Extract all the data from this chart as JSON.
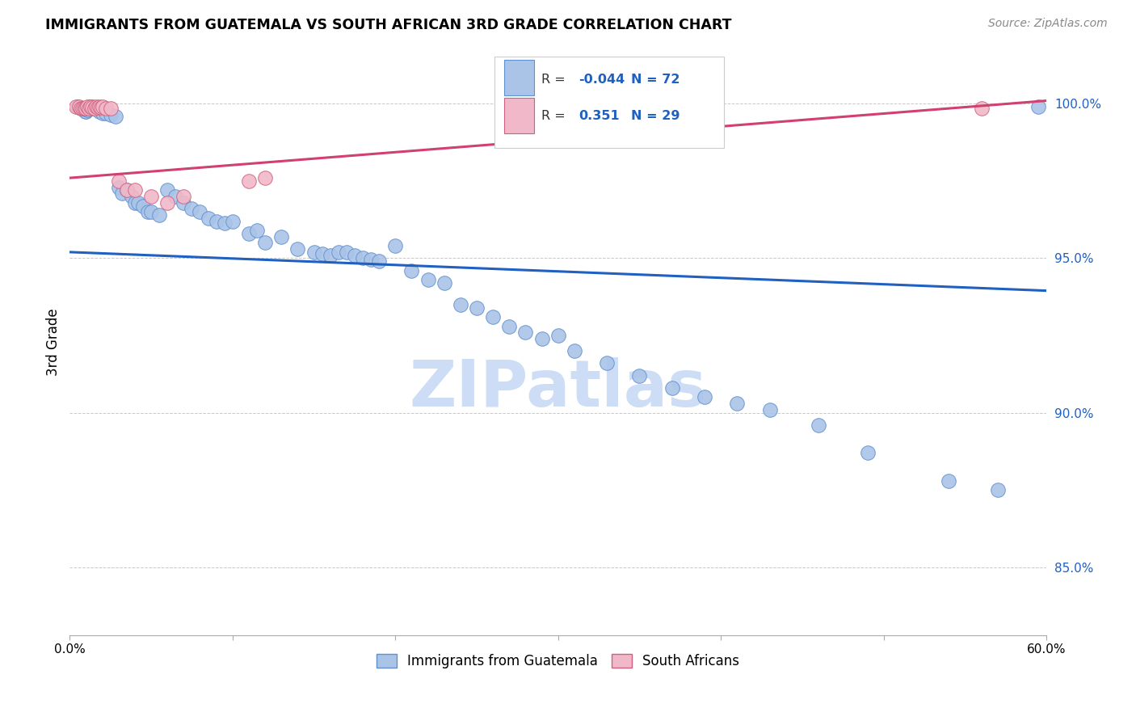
{
  "title": "IMMIGRANTS FROM GUATEMALA VS SOUTH AFRICAN 3RD GRADE CORRELATION CHART",
  "source": "Source: ZipAtlas.com",
  "ylabel": "3rd Grade",
  "y_ticks": [
    0.85,
    0.9,
    0.95,
    1.0
  ],
  "y_tick_labels": [
    "85.0%",
    "90.0%",
    "95.0%",
    "100.0%"
  ],
  "xmin": 0.0,
  "xmax": 0.6,
  "ymin": 0.828,
  "ymax": 1.018,
  "legend_label1": "Immigrants from Guatemala",
  "legend_label2": "South Africans",
  "r1": -0.044,
  "n1": 72,
  "r2": 0.351,
  "n2": 29,
  "color_blue": "#aac4e8",
  "color_pink": "#f0b8c8",
  "color_blue_edge": "#6090d0",
  "color_pink_edge": "#d06080",
  "trendline_blue": "#2060c0",
  "trendline_pink": "#d04070",
  "watermark_color": "#ccddf5",
  "blue_trendline_y0": 0.952,
  "blue_trendline_y1": 0.9395,
  "pink_trendline_y0": 0.976,
  "pink_trendline_y1": 1.001,
  "blue_scatter_x": [
    0.005,
    0.007,
    0.008,
    0.01,
    0.01,
    0.011,
    0.012,
    0.013,
    0.014,
    0.015,
    0.016,
    0.018,
    0.02,
    0.022,
    0.025,
    0.028,
    0.03,
    0.032,
    0.035,
    0.038,
    0.04,
    0.042,
    0.045,
    0.048,
    0.05,
    0.055,
    0.06,
    0.065,
    0.07,
    0.075,
    0.08,
    0.085,
    0.09,
    0.095,
    0.1,
    0.11,
    0.115,
    0.12,
    0.13,
    0.14,
    0.15,
    0.155,
    0.16,
    0.165,
    0.17,
    0.175,
    0.18,
    0.185,
    0.19,
    0.2,
    0.21,
    0.22,
    0.23,
    0.24,
    0.25,
    0.26,
    0.27,
    0.28,
    0.29,
    0.3,
    0.31,
    0.33,
    0.35,
    0.37,
    0.39,
    0.41,
    0.43,
    0.46,
    0.49,
    0.54,
    0.57,
    0.595
  ],
  "blue_scatter_y": [
    0.999,
    0.9985,
    0.9985,
    0.9975,
    0.9975,
    0.998,
    0.999,
    0.9985,
    0.999,
    0.9985,
    0.9985,
    0.9975,
    0.997,
    0.997,
    0.9965,
    0.996,
    0.973,
    0.971,
    0.972,
    0.97,
    0.968,
    0.968,
    0.967,
    0.965,
    0.965,
    0.964,
    0.972,
    0.97,
    0.968,
    0.966,
    0.965,
    0.963,
    0.962,
    0.9615,
    0.962,
    0.958,
    0.959,
    0.955,
    0.957,
    0.953,
    0.952,
    0.9515,
    0.951,
    0.952,
    0.952,
    0.951,
    0.95,
    0.9495,
    0.949,
    0.954,
    0.946,
    0.943,
    0.942,
    0.935,
    0.934,
    0.931,
    0.928,
    0.926,
    0.924,
    0.925,
    0.92,
    0.916,
    0.912,
    0.908,
    0.905,
    0.903,
    0.901,
    0.896,
    0.887,
    0.878,
    0.875,
    0.999
  ],
  "pink_scatter_x": [
    0.004,
    0.006,
    0.007,
    0.008,
    0.009,
    0.01,
    0.01,
    0.011,
    0.012,
    0.013,
    0.014,
    0.015,
    0.016,
    0.017,
    0.018,
    0.019,
    0.02,
    0.022,
    0.025,
    0.03,
    0.035,
    0.04,
    0.05,
    0.06,
    0.07,
    0.11,
    0.12,
    0.36,
    0.56
  ],
  "pink_scatter_y": [
    0.999,
    0.999,
    0.9985,
    0.9985,
    0.9985,
    0.9985,
    0.9985,
    0.999,
    0.9985,
    0.999,
    0.9988,
    0.9985,
    0.999,
    0.9988,
    0.999,
    0.9988,
    0.999,
    0.9985,
    0.9985,
    0.975,
    0.972,
    0.972,
    0.97,
    0.968,
    0.97,
    0.975,
    0.976,
    0.9985,
    0.9985
  ]
}
